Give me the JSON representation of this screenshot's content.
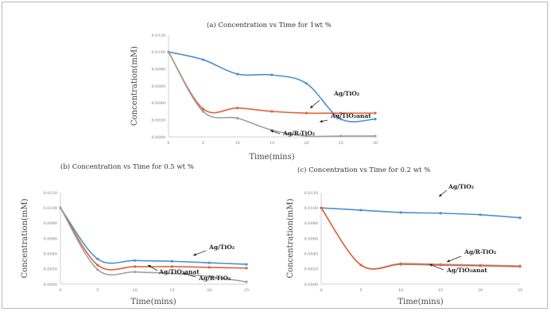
{
  "colors": {
    "ag_tio2": "#4a90d0",
    "ag_tio2_anat": "#e2613d",
    "ag_r_tio2": "#a0a0a0",
    "grid_axis": "#d0d0d0",
    "frame": "#b9b9b9"
  },
  "chart_data": [
    {
      "type": "line",
      "title": "(a)     Concentration vs Time for 1wt %",
      "xlabel": "Time(mins)",
      "ylabel": "Concentration(mM)",
      "x": [
        0,
        5,
        10,
        15,
        20,
        25,
        30
      ],
      "x_ticks": [
        "0",
        "5",
        "10",
        "15",
        "20",
        "25",
        "30"
      ],
      "xlim": [
        0,
        30
      ],
      "ylim": [
        0,
        0.012
      ],
      "y_ticks": [
        "0.0120",
        "0.0100",
        "0.0080",
        "0.0060",
        "0.0040",
        "0.0020",
        "0.0000"
      ],
      "y_tick_values": [
        0.012,
        0.01,
        0.008,
        0.006,
        0.004,
        0.002,
        0
      ],
      "grid": false,
      "series": [
        {
          "name": "Ag/TiO₂",
          "color": "#4a90d0",
          "values": [
            0.01,
            0.0091,
            0.0074,
            0.0073,
            0.0063,
            0.0021,
            0.0021
          ]
        },
        {
          "name": "Ag/TiO₂anat",
          "color": "#e2613d",
          "values": [
            0.01,
            0.0033,
            0.0034,
            0.003,
            0.0028,
            0.0028,
            0.0028
          ]
        },
        {
          "name": "Ag/R-TiO₂",
          "color": "#a0a0a0",
          "values": [
            0.01,
            0.003,
            0.0022,
            0.0008,
            0.0001,
            0.0001,
            0.0001
          ]
        }
      ],
      "annotations": [
        {
          "text": "Ag/TiO₂"
        },
        {
          "text": "Ag/TiO₂anat"
        },
        {
          "text": "Ag/R-TiO₂"
        }
      ]
    },
    {
      "type": "line",
      "title": "(b) Concentration vs Time for 0.5 wt %",
      "xlabel": "Time(mins)",
      "ylabel": "Concentration(mM)",
      "x": [
        0,
        5,
        10,
        15,
        20,
        25
      ],
      "x_ticks": [
        "0",
        "5",
        "10",
        "15",
        "20",
        "25"
      ],
      "xlim": [
        0,
        25
      ],
      "ylim": [
        0,
        0.012
      ],
      "y_ticks": [
        "0.0120",
        "0.0100",
        "0.0080",
        "0.0060",
        "0.0040",
        "0.0020",
        "0.0000"
      ],
      "y_tick_values": [
        0.012,
        0.01,
        0.008,
        0.006,
        0.004,
        0.002,
        0
      ],
      "grid": false,
      "series": [
        {
          "name": "Ag/TiO₂",
          "color": "#4a90d0",
          "values": [
            0.01,
            0.0033,
            0.0031,
            0.003,
            0.0028,
            0.0026
          ]
        },
        {
          "name": "Ag/TiO₂anat",
          "color": "#e2613d",
          "values": [
            0.01,
            0.0025,
            0.0023,
            0.0023,
            0.0022,
            0.0021
          ]
        },
        {
          "name": "Ag/R-TiO₂",
          "color": "#a0a0a0",
          "values": [
            0.01,
            0.0019,
            0.0016,
            0.0014,
            0.001,
            0.0003
          ]
        }
      ],
      "annotations": [
        {
          "text": "Ag/TiO₂"
        },
        {
          "text": "Ag/TiO₂anat"
        },
        {
          "text": "Ag/R-TiO₂"
        }
      ]
    },
    {
      "type": "line",
      "title": "(c) Concentration vs Time for 0.2 wt %",
      "xlabel": "Time(mins)",
      "ylabel": "Concentration(mM)",
      "x": [
        0,
        5,
        10,
        15,
        20,
        25
      ],
      "x_ticks": [
        "0",
        "5",
        "10",
        "15",
        "20",
        "25"
      ],
      "xlim": [
        0,
        25
      ],
      "ylim": [
        0,
        0.012
      ],
      "y_ticks": [
        "0.0120",
        "0.0100",
        "0.0080",
        "0.0060",
        "0.0040",
        "0.0020",
        "0.0000"
      ],
      "y_tick_values": [
        0.012,
        0.01,
        0.008,
        0.006,
        0.004,
        0.002,
        0
      ],
      "grid": false,
      "series": [
        {
          "name": "Ag/TiO₂",
          "color": "#4a90d0",
          "values": [
            0.01,
            0.0097,
            0.0094,
            0.0093,
            0.0091,
            0.0087
          ]
        },
        {
          "name": "Ag/R-TiO₂",
          "color": "#a0a0a0",
          "values": [
            0.01,
            0.0025,
            0.0027,
            0.0026,
            0.0025,
            0.0024
          ]
        },
        {
          "name": "Ag/TiO₂anat",
          "color": "#e2613d",
          "values": [
            0.01,
            0.0025,
            0.0026,
            0.0025,
            0.0024,
            0.0023
          ]
        }
      ],
      "annotations": [
        {
          "text": "Ag/TiO₂"
        },
        {
          "text": "Ag/R-TiO₂"
        },
        {
          "text": "Ag/TiO₂anat"
        }
      ]
    }
  ]
}
